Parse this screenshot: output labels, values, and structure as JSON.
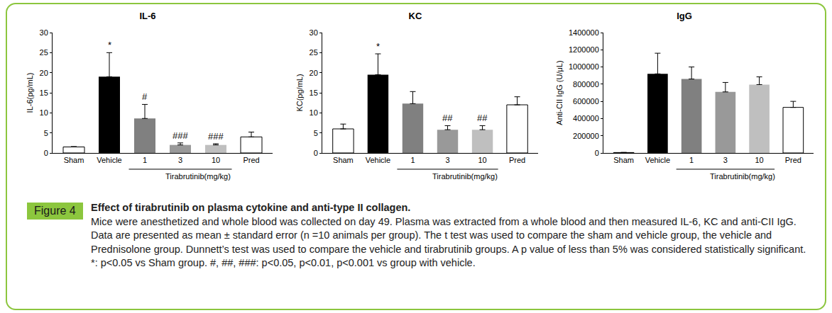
{
  "chart_data": [
    {
      "type": "bar",
      "title": "IL-6",
      "y_label": "IL-6(pg/mL)",
      "categories": [
        "Sham",
        "Vehicle",
        "1",
        "3",
        "10",
        "Pred"
      ],
      "values": [
        1.5,
        19,
        8.6,
        2.0,
        2.0,
        4.0
      ],
      "errors": [
        0.1,
        6.0,
        3.5,
        0.5,
        0.3,
        1.2
      ],
      "colors": [
        "#ffffff",
        "#000000",
        "#808080",
        "#999999",
        "#bfbfbf",
        "#ffffff"
      ],
      "significance": [
        null,
        "*",
        "#",
        "###",
        "###",
        null
      ],
      "group": {
        "label": "Tirabrutinib(mg/kg)",
        "categories": [
          "1",
          "3",
          "10"
        ]
      },
      "ylim": [
        0,
        30
      ],
      "yticks": [
        0,
        5,
        10,
        15,
        20,
        25,
        30
      ],
      "grid": false
    },
    {
      "type": "bar",
      "title": "KC",
      "y_label": "KC(pg/mL)",
      "categories": [
        "Sham",
        "Vehicle",
        "1",
        "3",
        "10",
        "Pred"
      ],
      "values": [
        6.0,
        19.5,
        12.3,
        5.8,
        5.8,
        12.0
      ],
      "errors": [
        1.2,
        5.2,
        3.0,
        1.0,
        1.0,
        2.0
      ],
      "colors": [
        "#ffffff",
        "#000000",
        "#808080",
        "#999999",
        "#bfbfbf",
        "#ffffff"
      ],
      "significance": [
        null,
        "*",
        null,
        "##",
        "##",
        null
      ],
      "group": {
        "label": "Tirabrutinib(mg/kg)",
        "categories": [
          "1",
          "3",
          "10"
        ]
      },
      "ylim": [
        0,
        30
      ],
      "yticks": [
        0,
        5,
        10,
        15,
        20,
        25,
        30
      ],
      "grid": false
    },
    {
      "type": "bar",
      "title": "IgG",
      "y_label": "Anti-CII IgG (U/μL)",
      "categories": [
        "Sham",
        "Vehicle",
        "1",
        "3",
        "10",
        "Pred"
      ],
      "values": [
        5000,
        920000,
        860000,
        710000,
        795000,
        530000
      ],
      "errors": [
        1000,
        240000,
        140000,
        110000,
        90000,
        70000
      ],
      "colors": [
        "#ffffff",
        "#000000",
        "#808080",
        "#999999",
        "#bfbfbf",
        "#ffffff"
      ],
      "group": {
        "label": "Tirabrutinib(mg/kg)",
        "categories": [
          "1",
          "3",
          "10"
        ]
      },
      "ylim": [
        0,
        1400000
      ],
      "yticks": [
        0,
        200000,
        400000,
        600000,
        800000,
        1000000,
        1200000,
        1400000
      ],
      "grid": false
    }
  ],
  "caption": {
    "label": "Figure 4",
    "title": "Effect of tirabrutinib on plasma cytokine and anti-type II collagen.",
    "text": "Mice were anesthetized and whole blood was collected on day 49. Plasma was extracted from a whole blood and then measured IL-6, KC and anti-CII IgG. Data are presented as mean ± standard error (n =10 animals per group). The t test was used to compare the sham and vehicle group, the vehicle and Prednisolone group. Dunnett’s test was used to compare the vehicle and tirabrutinib groups. A p value of less than 5% was considered statistically significant. *: p<0.05 vs Sham group. #, ##, ###: p<0.05, p<0.01, p<0.001 vs group with vehicle."
  }
}
